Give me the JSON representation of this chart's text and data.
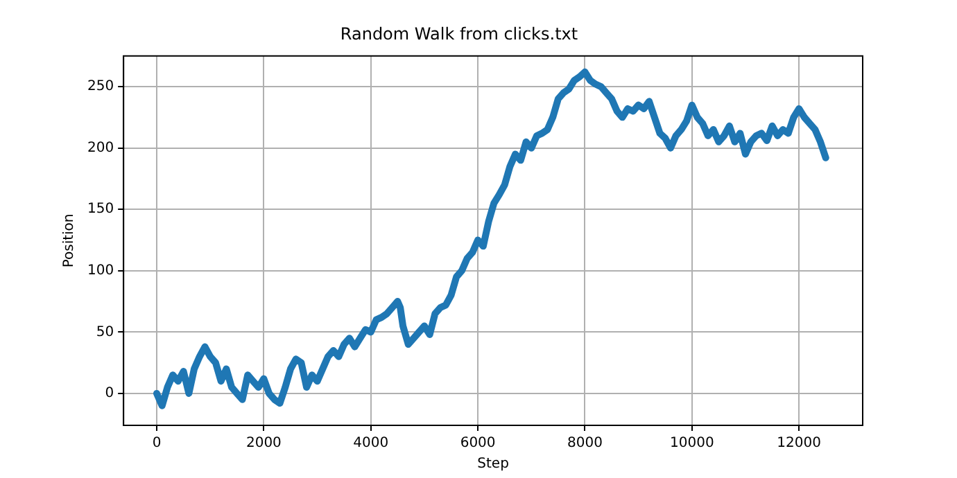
{
  "chart_data": {
    "type": "line",
    "title": "Random Walk from clicks.txt",
    "xlabel": "Step",
    "ylabel": "Position",
    "xlim": [
      -620,
      13190
    ],
    "ylim": [
      -26,
      275
    ],
    "xticks": [
      0,
      2000,
      4000,
      6000,
      8000,
      10000,
      12000
    ],
    "yticks": [
      0,
      50,
      100,
      150,
      200,
      250
    ],
    "grid": true,
    "marker": "none",
    "line_style": "solid",
    "series": [
      {
        "color": "#1f77b4",
        "x": [
          0,
          100,
          200,
          300,
          400,
          500,
          600,
          700,
          800,
          900,
          1000,
          1100,
          1200,
          1300,
          1400,
          1500,
          1600,
          1700,
          1800,
          1900,
          2000,
          2100,
          2200,
          2300,
          2400,
          2500,
          2600,
          2700,
          2800,
          2900,
          3000,
          3100,
          3200,
          3300,
          3400,
          3500,
          3600,
          3700,
          3800,
          3900,
          4000,
          4100,
          4200,
          4300,
          4400,
          4500,
          4550,
          4600,
          4700,
          4800,
          4900,
          5000,
          5100,
          5200,
          5300,
          5400,
          5500,
          5600,
          5700,
          5800,
          5900,
          6000,
          6100,
          6200,
          6300,
          6400,
          6500,
          6600,
          6700,
          6800,
          6900,
          7000,
          7100,
          7200,
          7300,
          7400,
          7500,
          7600,
          7700,
          7800,
          7900,
          8000,
          8100,
          8200,
          8300,
          8400,
          8500,
          8600,
          8700,
          8800,
          8900,
          9000,
          9100,
          9200,
          9300,
          9400,
          9500,
          9600,
          9700,
          9800,
          9900,
          10000,
          10100,
          10200,
          10300,
          10400,
          10500,
          10600,
          10700,
          10800,
          10900,
          11000,
          11100,
          11200,
          11300,
          11400,
          11500,
          11600,
          11700,
          11800,
          11900,
          12000,
          12100,
          12200,
          12300,
          12400,
          12500
        ],
        "values": [
          0,
          -10,
          5,
          15,
          10,
          18,
          0,
          20,
          30,
          38,
          30,
          25,
          10,
          20,
          5,
          0,
          -5,
          15,
          10,
          5,
          12,
          0,
          -5,
          -8,
          5,
          20,
          28,
          25,
          5,
          15,
          10,
          20,
          30,
          35,
          30,
          40,
          45,
          38,
          45,
          52,
          50,
          60,
          62,
          65,
          70,
          75,
          70,
          55,
          40,
          45,
          50,
          55,
          48,
          65,
          70,
          72,
          80,
          95,
          100,
          110,
          115,
          125,
          120,
          140,
          155,
          162,
          170,
          185,
          195,
          190,
          205,
          200,
          210,
          212,
          215,
          225,
          240,
          245,
          248,
          255,
          258,
          262,
          255,
          252,
          250,
          245,
          240,
          230,
          225,
          232,
          230,
          235,
          232,
          238,
          225,
          212,
          208,
          200,
          210,
          215,
          222,
          235,
          225,
          220,
          210,
          215,
          205,
          210,
          218,
          205,
          212,
          195,
          205,
          210,
          212,
          206,
          218,
          210,
          215,
          212,
          225,
          232,
          225,
          220,
          215,
          205,
          192
        ]
      }
    ]
  }
}
